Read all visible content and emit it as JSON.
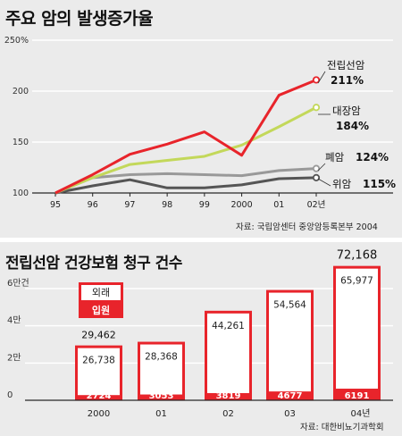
{
  "chart_data": [
    {
      "type": "line",
      "title": "주요 암의 발생증가율",
      "x": [
        "95",
        "96",
        "97",
        "98",
        "99",
        "2000",
        "01",
        "02년"
      ],
      "ylim": [
        100,
        250
      ],
      "yticks": [
        "100",
        "150",
        "200",
        "250%"
      ],
      "series": [
        {
          "name": "전립선암",
          "value_label": "211%",
          "color": "#e8242b",
          "values": [
            100,
            118,
            138,
            148,
            160,
            137,
            196,
            211
          ]
        },
        {
          "name": "대장암",
          "value_label": "184%",
          "color": "#c3d85a",
          "values": [
            100,
            115,
            128,
            132,
            136,
            147,
            165,
            184
          ]
        },
        {
          "name": "폐암",
          "value_label": "124%",
          "color": "#999999",
          "values": [
            100,
            115,
            118,
            119,
            118,
            117,
            122,
            124
          ]
        },
        {
          "name": "위암",
          "value_label": "115%",
          "color": "#555555",
          "values": [
            100,
            107,
            113,
            105,
            105,
            108,
            114,
            115
          ]
        }
      ],
      "source": "자료: 국립암센터 중앙암등록본부 2004"
    },
    {
      "type": "bar",
      "title": "전립선암 건강보험 청구 건수",
      "categories": [
        "2000",
        "01",
        "02",
        "03",
        "04년"
      ],
      "yticks": [
        "0",
        "2만",
        "4만",
        "6만건"
      ],
      "ylim": [
        0,
        75000
      ],
      "series": [
        {
          "name": "외래",
          "color": "#ffffff",
          "values": [
            26738,
            28368,
            44261,
            54564,
            65977
          ],
          "labels": [
            "26,738",
            "28,368",
            "44,261",
            "54,564",
            "65,977"
          ]
        },
        {
          "name": "입원",
          "color": "#e8242b",
          "values": [
            2724,
            3053,
            3819,
            4677,
            6191
          ],
          "labels": [
            "2724",
            "3053",
            "3819",
            "4677",
            "6191"
          ]
        }
      ],
      "totals": [
        29462,
        null,
        null,
        null,
        72168
      ],
      "total_labels": [
        "29,462",
        "",
        "",
        "",
        "72,168"
      ],
      "source": "자료: 대한비뇨기과학회"
    }
  ]
}
